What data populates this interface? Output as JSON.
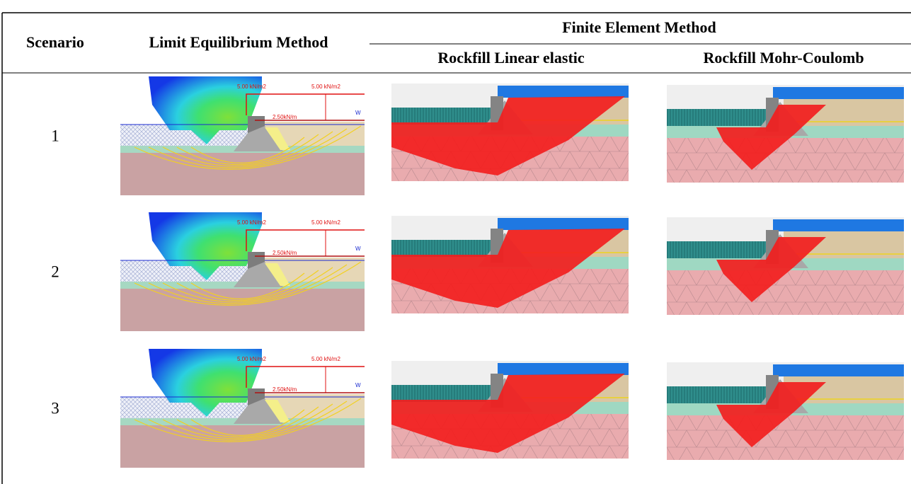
{
  "table": {
    "header": {
      "scenario": "Scenario",
      "lem": "Limit Equilibrium Method",
      "fem": "Finite Element Method",
      "fem_linear": "Rockfill Linear elastic",
      "fem_mc": "Rockfill Mohr-Coulomb"
    },
    "rows": [
      {
        "scenario": "1",
        "lem_labels": [
          "5.00 kN/m2",
          "5.00 kN/m2",
          "2.50kN/m",
          "W"
        ]
      },
      {
        "scenario": "2",
        "lem_labels": [
          "5.00 kN/m2",
          "5.00 kN/m2",
          "2.50kN/m",
          "W"
        ]
      },
      {
        "scenario": "3",
        "lem_labels": [
          "5.00 kN/m2",
          "5.00 kN/m2",
          "2.50kN/m",
          "W"
        ]
      }
    ]
  }
}
